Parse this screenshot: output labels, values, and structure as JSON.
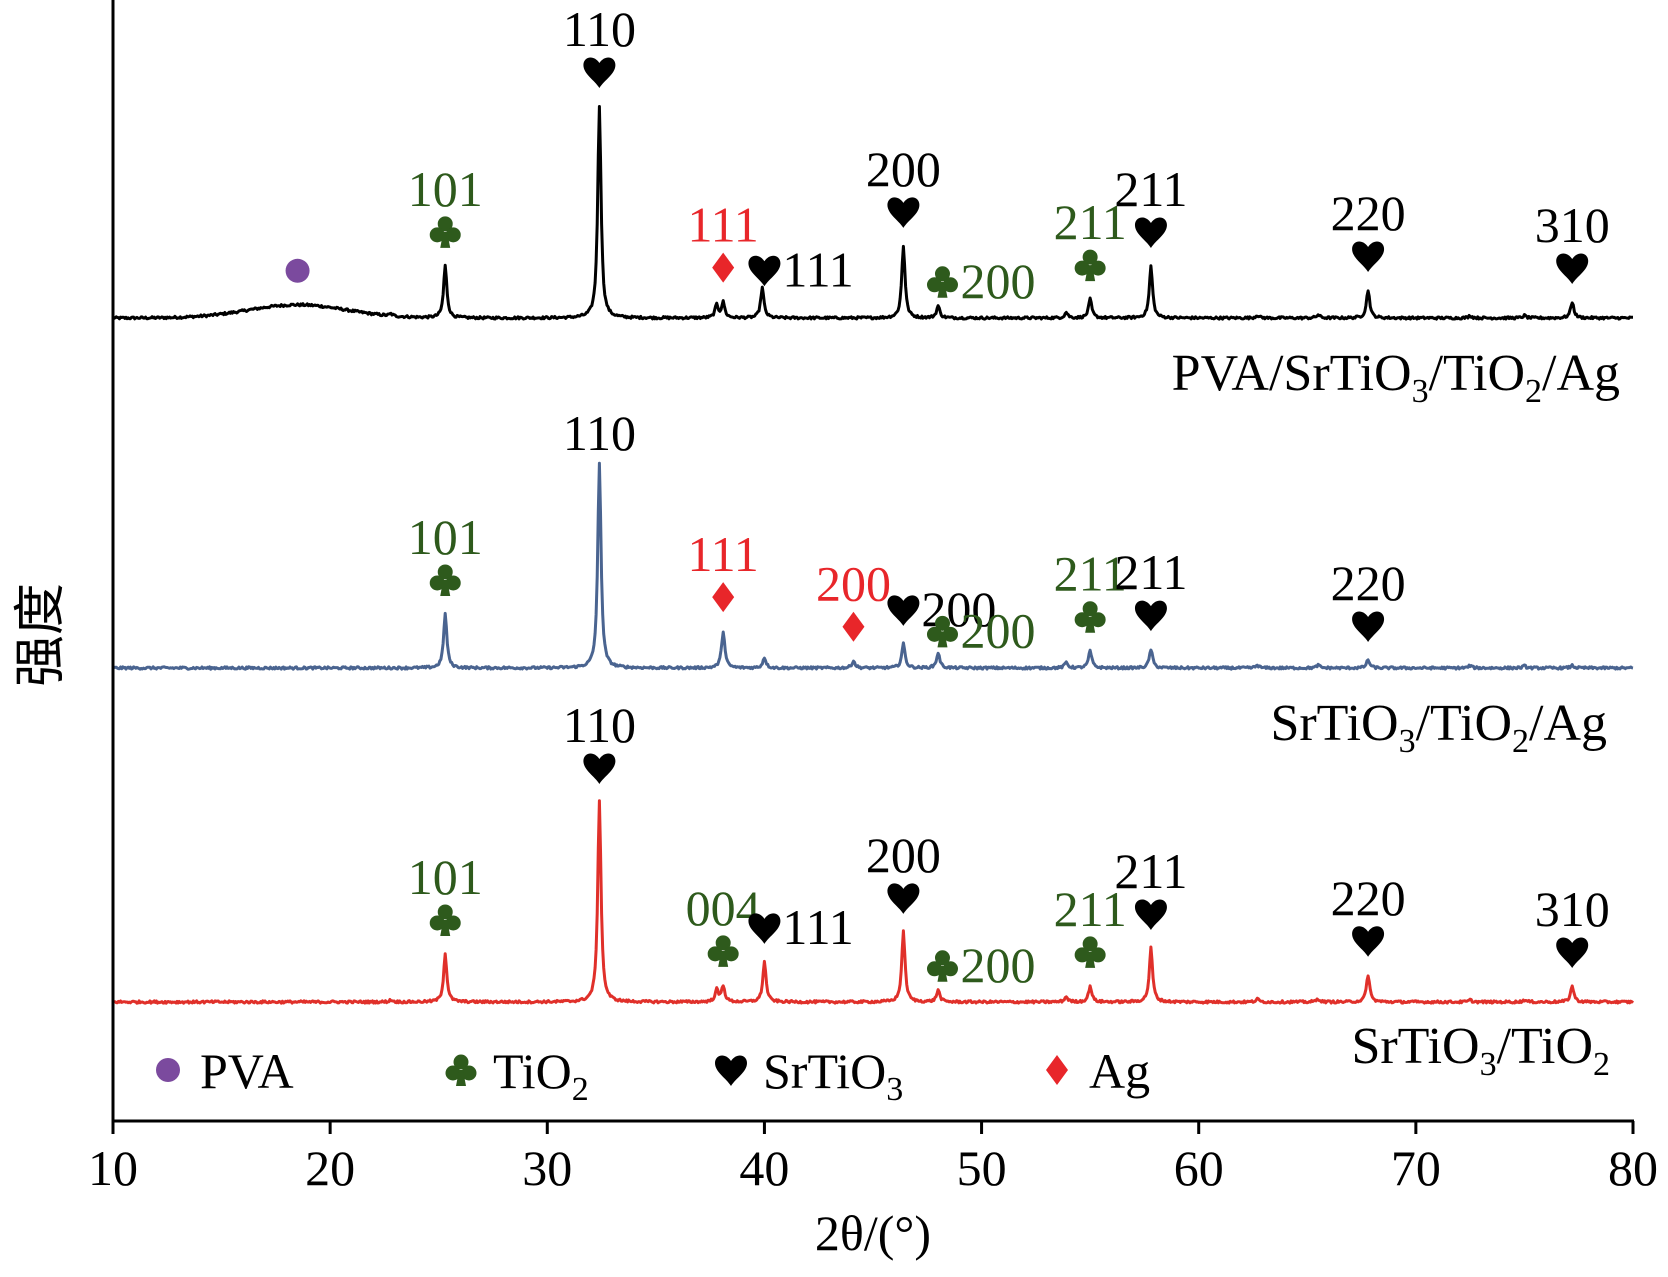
{
  "chart_data": {
    "type": "line",
    "xlabel": "2θ/(°)",
    "ylabel": "强度",
    "xlim": [
      10,
      80
    ],
    "xticks": [
      10,
      20,
      30,
      40,
      50,
      60,
      70,
      80
    ],
    "yticks_shown": false,
    "colors": {
      "TiO2": "#2e5a1c",
      "SrTiO3": "#000000",
      "Ag": "#e8262a",
      "PVA": "#7b4a9e"
    },
    "legend": {
      "placement": "bottom",
      "entries": [
        {
          "symbol": "circle",
          "color": "#7b4a9e",
          "label": "PVA"
        },
        {
          "symbol": "club",
          "color": "#2e5a1c",
          "label": "TiO",
          "sub": "2"
        },
        {
          "symbol": "heart",
          "color": "#000000",
          "label": "SrTiO",
          "sub": "3"
        },
        {
          "symbol": "diamond",
          "color": "#e8262a",
          "label": "Ag"
        }
      ]
    },
    "series": [
      {
        "color": "#000000",
        "label_parts": [
          [
            "PVA/SrTiO",
            ""
          ],
          [
            "3",
            "sub"
          ],
          [
            "/TiO",
            ""
          ],
          [
            "2",
            "sub"
          ],
          [
            "/Ag",
            ""
          ]
        ],
        "hump": {
          "center": 18.5,
          "height": 0.33
        },
        "peaks": [
          {
            "x": 22.8,
            "h": 0.05
          },
          {
            "x": 25.3,
            "h": 1.3
          },
          {
            "x": 32.4,
            "h": 5.3
          },
          {
            "x": 37.8,
            "h": 0.32
          },
          {
            "x": 38.1,
            "h": 0.38
          },
          {
            "x": 39.9,
            "h": 0.76
          },
          {
            "x": 46.4,
            "h": 1.8
          },
          {
            "x": 48.0,
            "h": 0.3
          },
          {
            "x": 53.9,
            "h": 0.14
          },
          {
            "x": 55.0,
            "h": 0.47
          },
          {
            "x": 57.8,
            "h": 1.3
          },
          {
            "x": 62.7,
            "h": 0.07
          },
          {
            "x": 65.5,
            "h": 0.08
          },
          {
            "x": 67.8,
            "h": 0.7
          },
          {
            "x": 72.5,
            "h": 0.06
          },
          {
            "x": 75.0,
            "h": 0.06
          },
          {
            "x": 77.2,
            "h": 0.4
          }
        ],
        "annotations": [
          {
            "x": 18.5,
            "marker": "circle",
            "marker_color": "#7b4a9e"
          },
          {
            "x": 25.3,
            "label": "101",
            "color": "#2e5a1c",
            "marker": "club",
            "marker_color": "#2e5a1c"
          },
          {
            "x": 32.4,
            "label": "110",
            "color": "#000000",
            "marker": "heart",
            "marker_color": "#000000"
          },
          {
            "x": 38.1,
            "label": "111",
            "color": "#e8262a",
            "marker": "diamond",
            "marker_color": "#e8262a"
          },
          {
            "x": 40.0,
            "label": "111",
            "color": "#000000",
            "marker": "heart",
            "marker_color": "#000000",
            "label_side": "right"
          },
          {
            "x": 46.4,
            "label": "200",
            "color": "#000000",
            "marker": "heart",
            "marker_color": "#000000"
          },
          {
            "x": 48.2,
            "label": "200",
            "color": "#2e5a1c",
            "marker": "club",
            "marker_color": "#2e5a1c",
            "label_side": "right"
          },
          {
            "x": 55.0,
            "label": "211",
            "color": "#2e5a1c",
            "marker": "club",
            "marker_color": "#2e5a1c"
          },
          {
            "x": 57.8,
            "label": "211",
            "color": "#000000",
            "marker": "heart",
            "marker_color": "#000000"
          },
          {
            "x": 67.8,
            "label": "220",
            "color": "#000000",
            "marker": "heart",
            "marker_color": "#000000"
          },
          {
            "x": 77.2,
            "label": "310",
            "color": "#000000",
            "marker": "heart",
            "marker_color": "#000000"
          }
        ]
      },
      {
        "color": "#4a6490",
        "label_parts": [
          [
            "SrTiO",
            ""
          ],
          [
            "3",
            "sub"
          ],
          [
            "/TiO",
            ""
          ],
          [
            "2",
            "sub"
          ],
          [
            "/Ag",
            ""
          ]
        ],
        "peaks": [
          {
            "x": 25.3,
            "h": 1.35
          },
          {
            "x": 32.4,
            "h": 5.1
          },
          {
            "x": 38.1,
            "h": 0.92
          },
          {
            "x": 40.0,
            "h": 0.26
          },
          {
            "x": 44.1,
            "h": 0.18
          },
          {
            "x": 46.4,
            "h": 0.6
          },
          {
            "x": 48.0,
            "h": 0.38
          },
          {
            "x": 53.9,
            "h": 0.14
          },
          {
            "x": 55.0,
            "h": 0.43
          },
          {
            "x": 57.8,
            "h": 0.47
          },
          {
            "x": 62.7,
            "h": 0.07
          },
          {
            "x": 65.5,
            "h": 0.07
          },
          {
            "x": 67.8,
            "h": 0.2
          },
          {
            "x": 72.5,
            "h": 0.06
          },
          {
            "x": 75.0,
            "h": 0.05
          },
          {
            "x": 77.2,
            "h": 0.06
          }
        ],
        "annotations": [
          {
            "x": 25.3,
            "label": "101",
            "color": "#2e5a1c",
            "marker": "club",
            "marker_color": "#2e5a1c"
          },
          {
            "x": 32.4,
            "label": "110",
            "color": "#000000"
          },
          {
            "x": 38.1,
            "label": "111",
            "color": "#e8262a",
            "marker": "diamond",
            "marker_color": "#e8262a"
          },
          {
            "x": 44.1,
            "label": "200",
            "color": "#e8262a",
            "marker": "diamond",
            "marker_color": "#e8262a"
          },
          {
            "x": 46.4,
            "label": "200",
            "color": "#000000",
            "marker": "heart",
            "marker_color": "#000000",
            "label_side": "right"
          },
          {
            "x": 48.2,
            "label": "200",
            "color": "#2e5a1c",
            "marker": "club",
            "marker_color": "#2e5a1c",
            "label_side": "right"
          },
          {
            "x": 55.0,
            "label": "211",
            "color": "#2e5a1c",
            "marker": "club",
            "marker_color": "#2e5a1c"
          },
          {
            "x": 57.8,
            "label": "211",
            "color": "#000000",
            "marker": "heart",
            "marker_color": "#000000"
          },
          {
            "x": 67.8,
            "label": "220",
            "color": "#000000",
            "marker": "heart",
            "marker_color": "#000000"
          }
        ]
      },
      {
        "color": "#e0302a",
        "label_parts": [
          [
            "SrTiO",
            ""
          ],
          [
            "3",
            "sub"
          ],
          [
            "/TiO",
            ""
          ],
          [
            "2",
            "sub"
          ]
        ],
        "peaks": [
          {
            "x": 22.8,
            "h": 0.05
          },
          {
            "x": 25.3,
            "h": 1.2
          },
          {
            "x": 32.4,
            "h": 5.0
          },
          {
            "x": 37.8,
            "h": 0.3
          },
          {
            "x": 38.1,
            "h": 0.4
          },
          {
            "x": 40.0,
            "h": 1.0
          },
          {
            "x": 46.4,
            "h": 1.75
          },
          {
            "x": 48.0,
            "h": 0.3
          },
          {
            "x": 53.9,
            "h": 0.13
          },
          {
            "x": 55.0,
            "h": 0.4
          },
          {
            "x": 57.8,
            "h": 1.35
          },
          {
            "x": 62.7,
            "h": 0.07
          },
          {
            "x": 65.5,
            "h": 0.08
          },
          {
            "x": 67.8,
            "h": 0.68
          },
          {
            "x": 72.5,
            "h": 0.05
          },
          {
            "x": 75.0,
            "h": 0.05
          },
          {
            "x": 77.2,
            "h": 0.4
          }
        ],
        "annotations": [
          {
            "x": 25.3,
            "label": "101",
            "color": "#2e5a1c",
            "marker": "club",
            "marker_color": "#2e5a1c"
          },
          {
            "x": 32.4,
            "label": "110",
            "color": "#000000",
            "marker": "heart",
            "marker_color": "#000000"
          },
          {
            "x": 38.1,
            "label": "004",
            "color": "#2e5a1c",
            "marker": "club",
            "marker_color": "#2e5a1c"
          },
          {
            "x": 40.0,
            "label": "111",
            "color": "#000000",
            "marker": "heart",
            "marker_color": "#000000",
            "label_side": "right"
          },
          {
            "x": 46.4,
            "label": "200",
            "color": "#000000",
            "marker": "heart",
            "marker_color": "#000000"
          },
          {
            "x": 48.2,
            "label": "200",
            "color": "#2e5a1c",
            "marker": "club",
            "marker_color": "#2e5a1c",
            "label_side": "right"
          },
          {
            "x": 55.0,
            "label": "211",
            "color": "#2e5a1c",
            "marker": "club",
            "marker_color": "#2e5a1c"
          },
          {
            "x": 57.8,
            "label": "211",
            "color": "#000000",
            "marker": "heart",
            "marker_color": "#000000"
          },
          {
            "x": 67.8,
            "label": "220",
            "color": "#000000",
            "marker": "heart",
            "marker_color": "#000000"
          },
          {
            "x": 77.2,
            "label": "310",
            "color": "#000000",
            "marker": "heart",
            "marker_color": "#000000"
          }
        ]
      }
    ]
  }
}
